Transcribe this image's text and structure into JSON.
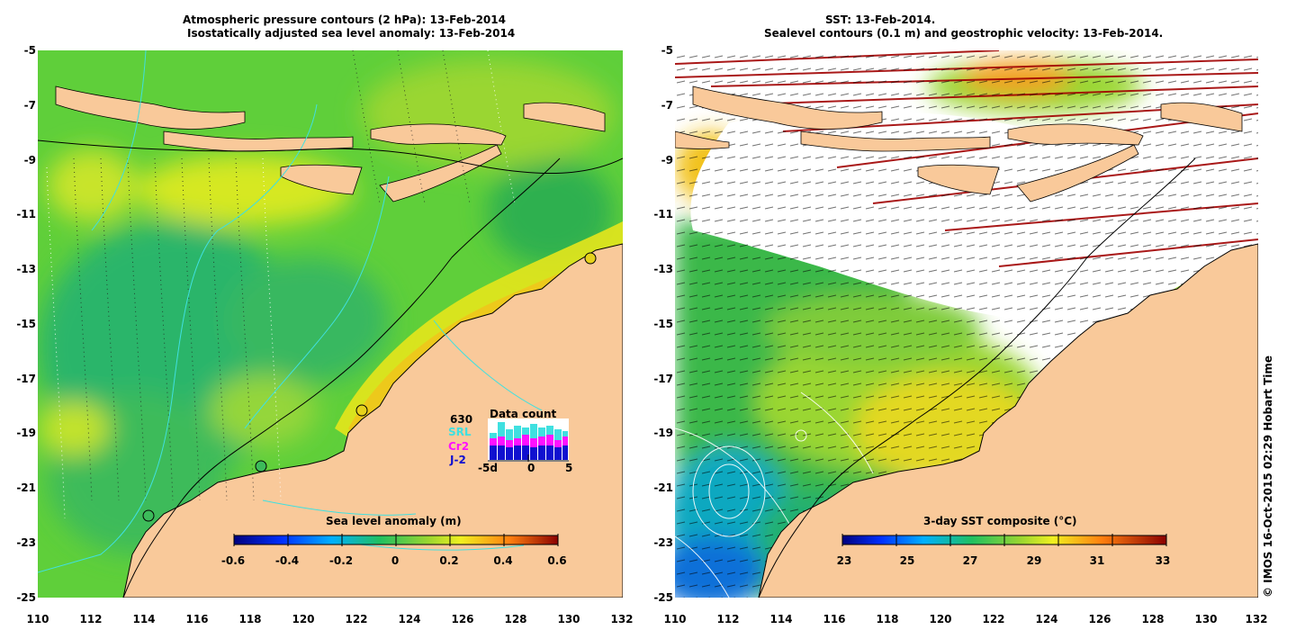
{
  "left_panel": {
    "title_line1": "Atmospheric pressure contours (2 hPa): 13-Feb-2014",
    "title_line2": "Isostatically adjusted sea level anomaly: 13-Feb-2014",
    "colorbar": {
      "title": "Sea level anomaly (m)",
      "ticks": [
        "-0.6",
        "-0.4",
        "-0.2",
        "0",
        "0.2",
        "0.4",
        "0.6"
      ]
    },
    "data_count": {
      "title": "Data count",
      "total": "630",
      "satellites": [
        {
          "name": "SRL",
          "color": "#3fe0e0"
        },
        {
          "name": "Cr2",
          "color": "#ff10ff"
        },
        {
          "name": "J-2",
          "color": "#1010d0"
        }
      ],
      "axis_labels": [
        "-5d",
        "0",
        "5"
      ]
    }
  },
  "right_panel": {
    "title_line1": "SST: 13-Feb-2014.",
    "title_line2": "Sealevel contours (0.1 m) and geostrophic velocity: 13-Feb-2014.",
    "colorbar": {
      "title": "3-day SST composite (°C)",
      "ticks": [
        "23",
        "25",
        "27",
        "29",
        "31",
        "33"
      ]
    }
  },
  "axes": {
    "latitude_ticks": [
      "-5",
      "-7",
      "-9",
      "-11",
      "-13",
      "-15",
      "-17",
      "-19",
      "-21",
      "-23",
      "-25"
    ],
    "longitude_ticks": [
      "110",
      "112",
      "114",
      "116",
      "118",
      "120",
      "122",
      "124",
      "126",
      "128",
      "130",
      "132"
    ]
  },
  "credit": "© IMOS 16-Oct-2015 02:29 Hobart Time",
  "colors": {
    "land": "#f9c99a",
    "coast": "#000000",
    "bathymetry": "#40e0e0"
  }
}
